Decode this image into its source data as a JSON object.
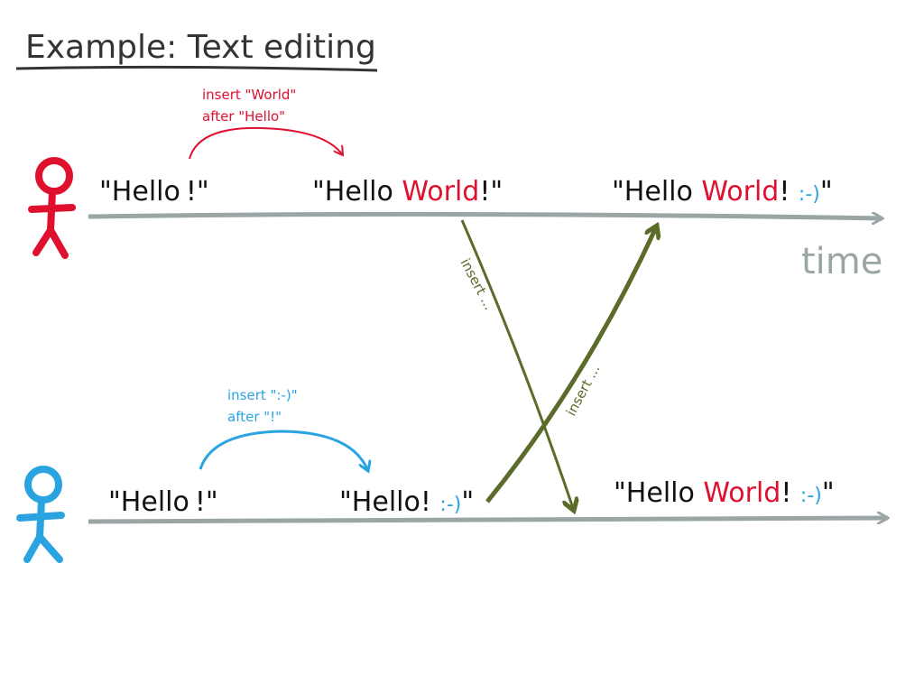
{
  "title": "Example: Text editing",
  "colors": {
    "ink": "#111111",
    "user1": "#e0102f",
    "user2": "#2aa4e0",
    "sync": "#5a6b2a",
    "timeline": "#9aa6a6",
    "title": "#333333"
  },
  "time_label": "time",
  "user1": {
    "icon": "stick-figure-icon",
    "op_note": [
      "insert \"World\"",
      "after \"Hello\""
    ],
    "docs": [
      {
        "prefix": "\"Hello",
        "added": "",
        "suffix": "!\"",
        "smiley": ""
      },
      {
        "prefix": "\"Hello ",
        "added": "World",
        "suffix": "!\"",
        "smiley": ""
      },
      {
        "prefix": "\"Hello ",
        "added": "World",
        "suffix": "! ",
        "smiley": ":-)",
        "close": "\""
      }
    ]
  },
  "user2": {
    "icon": "stick-figure-icon",
    "op_note": [
      "insert \":-)\"",
      "after \"!\""
    ],
    "docs": [
      {
        "prefix": "\"Hello",
        "added": "",
        "suffix": "!\"",
        "smiley": ""
      },
      {
        "prefix": "\"Hello! ",
        "added": "",
        "suffix": "",
        "smiley": ":-)",
        "close": "\""
      },
      {
        "prefix": "\"Hello ",
        "added": "World",
        "suffix": "! ",
        "smiley": ":-)",
        "close": "\""
      }
    ]
  },
  "sync_labels": {
    "down": "insert ...",
    "up": "insert ..."
  }
}
